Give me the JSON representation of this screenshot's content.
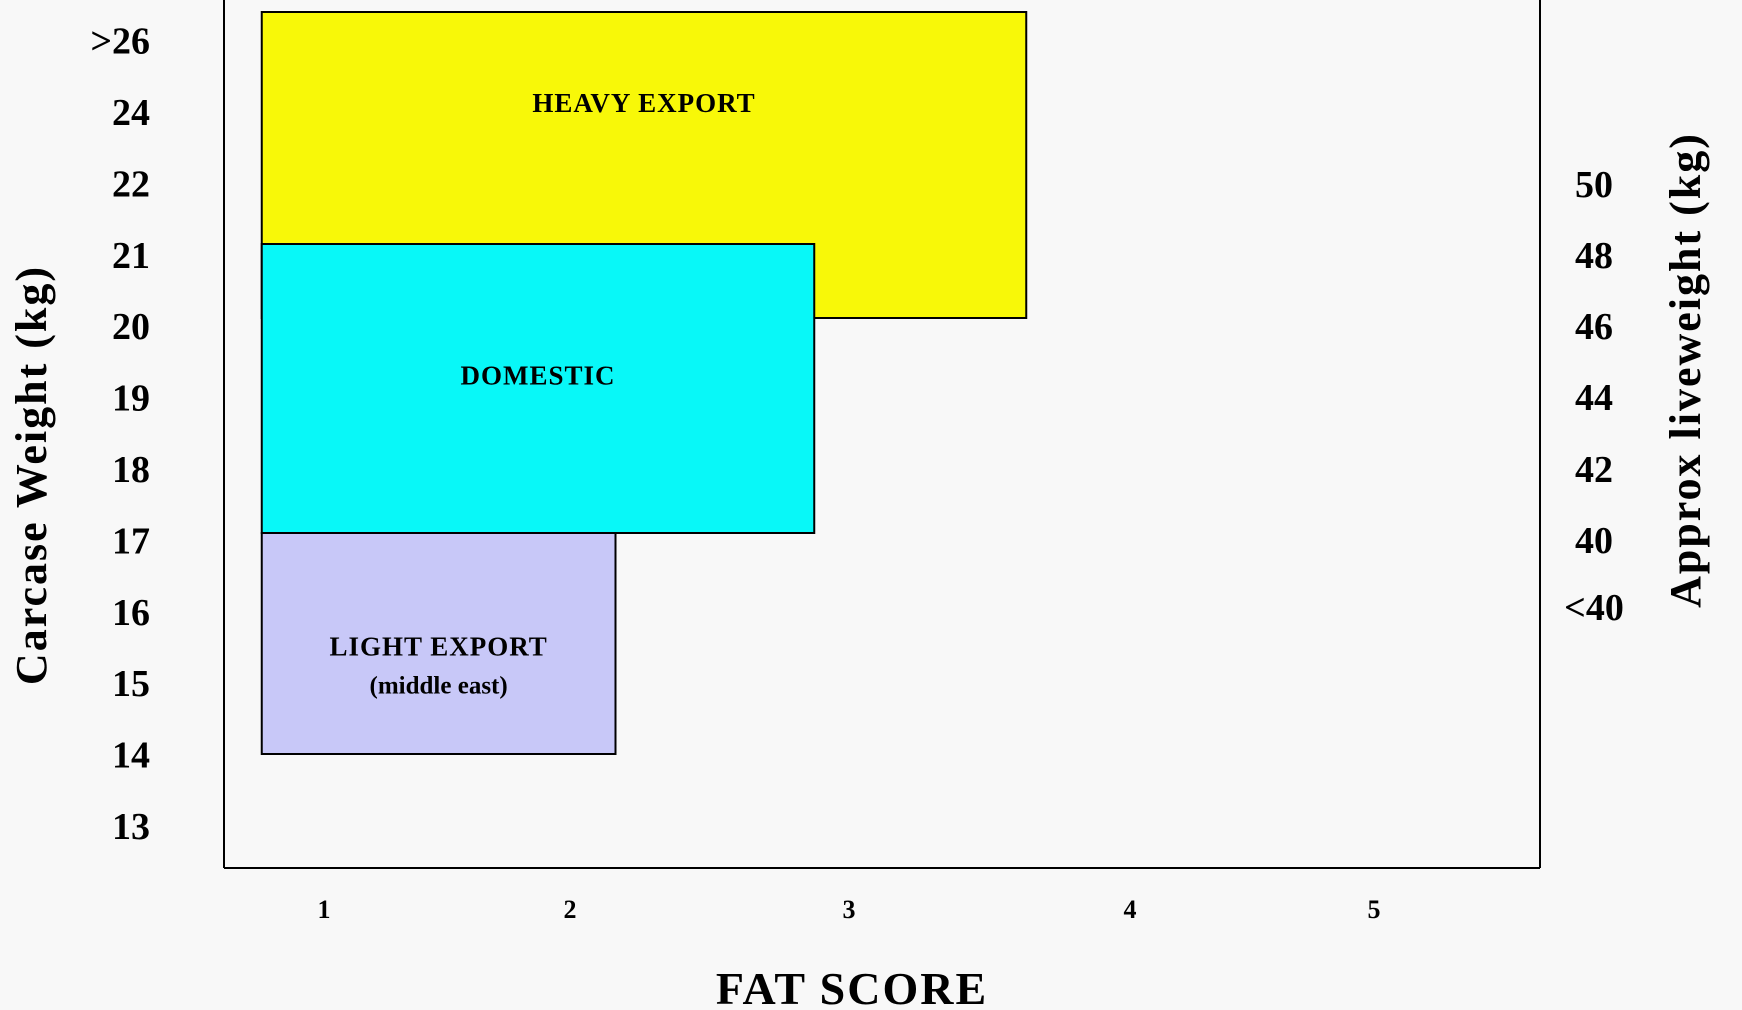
{
  "chart_data": {
    "type": "block",
    "xlabel": "FAT SCORE",
    "ylabel": "Carcase Weight (kg)",
    "y2label": "Approx liveweight (kg)",
    "x_ticks": [
      "1",
      "2",
      "3",
      "4",
      "5"
    ],
    "y_ticks": [
      "13",
      "14",
      "15",
      "16",
      "17",
      "18",
      "19",
      "20",
      "21",
      "22",
      "24",
      ">26"
    ],
    "y2_ticks": [
      "<40",
      "40",
      "42",
      "44",
      "46",
      "48",
      "50"
    ],
    "bands": [
      {
        "name": "HEAVY EXPORT",
        "sublabel": "",
        "color": "#f8f808",
        "fat_score_range": [
          0.75,
          3.65
        ],
        "carcase_weight_range": [
          20,
          ">26"
        ]
      },
      {
        "name": "DOMESTIC",
        "sublabel": "",
        "color": "#08f8f8",
        "fat_score_range": [
          0.75,
          2.85
        ],
        "carcase_weight_range": [
          17,
          21
        ]
      },
      {
        "name": "LIGHT EXPORT",
        "sublabel": "(middle east)",
        "color": "#c8c8f8",
        "fat_score_range": [
          0.75,
          2.1
        ],
        "carcase_weight_range": [
          14,
          17
        ]
      }
    ]
  }
}
